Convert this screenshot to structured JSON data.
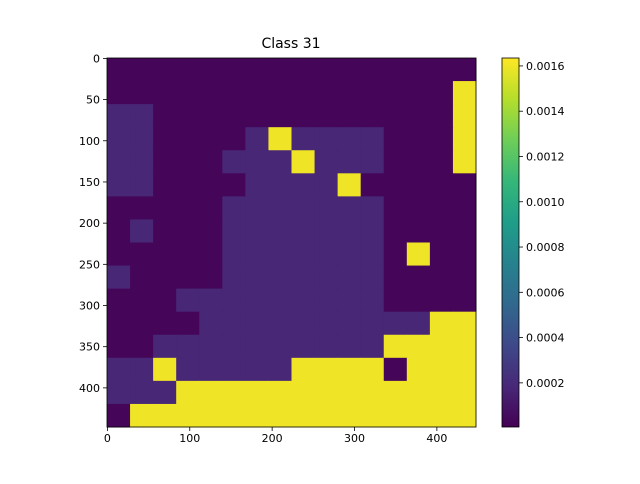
{
  "chart_data": {
    "type": "heatmap",
    "title": "Class 31",
    "colormap": "viridis",
    "xlim": [
      -0.5,
      447.5
    ],
    "ylim": [
      447.5,
      -0.5
    ],
    "xticks": [
      0,
      100,
      200,
      300,
      400
    ],
    "yticks": [
      0,
      50,
      100,
      150,
      200,
      250,
      300,
      350,
      400
    ],
    "clim": [
      5e-06,
      0.001635
    ],
    "cticks": [
      {
        "value": 0.0002,
        "label": "0.0002"
      },
      {
        "value": 0.0004,
        "label": "0.0004"
      },
      {
        "value": 0.0006,
        "label": "0.0006"
      },
      {
        "value": 0.0008,
        "label": "0.0008"
      },
      {
        "value": 0.001,
        "label": "0.0010"
      },
      {
        "value": 0.0012,
        "label": "0.0012"
      },
      {
        "value": 0.0014,
        "label": "0.0014"
      },
      {
        "value": 0.0016,
        "label": "0.0016"
      }
    ],
    "values": [
      [
        3e-05,
        3e-05,
        3e-05,
        3e-05,
        3e-05,
        3e-05,
        3e-05,
        3e-05,
        3e-05,
        3e-05,
        3e-05,
        3e-05,
        3e-05,
        3e-05,
        3e-05,
        3e-05
      ],
      [
        3e-05,
        3e-05,
        3e-05,
        3e-05,
        3e-05,
        3e-05,
        3e-05,
        3e-05,
        3e-05,
        3e-05,
        3e-05,
        3e-05,
        3e-05,
        3e-05,
        3e-05,
        0.0016
      ],
      [
        0.00018,
        0.00018,
        3e-05,
        3e-05,
        3e-05,
        3e-05,
        3e-05,
        3e-05,
        3e-05,
        3e-05,
        3e-05,
        3e-05,
        3e-05,
        3e-05,
        3e-05,
        0.0016
      ],
      [
        0.00018,
        0.00018,
        3e-05,
        3e-05,
        3e-05,
        3e-05,
        0.00018,
        0.0016,
        0.00018,
        0.00018,
        0.00018,
        0.00018,
        3e-05,
        3e-05,
        3e-05,
        0.0016
      ],
      [
        0.00018,
        0.00018,
        3e-05,
        3e-05,
        3e-05,
        0.00018,
        0.00018,
        0.00018,
        0.0016,
        0.00018,
        0.00018,
        0.00018,
        3e-05,
        3e-05,
        3e-05,
        0.0016
      ],
      [
        0.00018,
        0.00018,
        3e-05,
        3e-05,
        3e-05,
        3e-05,
        0.00018,
        0.00018,
        0.00018,
        0.00018,
        0.0016,
        3e-05,
        3e-05,
        3e-05,
        3e-05,
        3e-05
      ],
      [
        3e-05,
        3e-05,
        3e-05,
        3e-05,
        3e-05,
        0.00018,
        0.00018,
        0.00018,
        0.00018,
        0.00018,
        0.00018,
        0.00018,
        3e-05,
        3e-05,
        3e-05,
        3e-05
      ],
      [
        3e-05,
        0.00018,
        3e-05,
        3e-05,
        3e-05,
        0.00018,
        0.00018,
        0.00018,
        0.00018,
        0.00018,
        0.00018,
        0.00018,
        3e-05,
        3e-05,
        3e-05,
        3e-05
      ],
      [
        3e-05,
        3e-05,
        3e-05,
        3e-05,
        3e-05,
        0.00018,
        0.00018,
        0.00018,
        0.00018,
        0.00018,
        0.00018,
        0.00018,
        3e-05,
        0.0016,
        3e-05,
        3e-05
      ],
      [
        0.00018,
        3e-05,
        3e-05,
        3e-05,
        3e-05,
        0.00018,
        0.00018,
        0.00018,
        0.00018,
        0.00018,
        0.00018,
        0.00018,
        3e-05,
        3e-05,
        3e-05,
        3e-05
      ],
      [
        3e-05,
        3e-05,
        3e-05,
        0.00018,
        0.00018,
        0.00018,
        0.00018,
        0.00018,
        0.00018,
        0.00018,
        0.00018,
        0.00018,
        3e-05,
        3e-05,
        3e-05,
        3e-05
      ],
      [
        3e-05,
        3e-05,
        3e-05,
        3e-05,
        0.00018,
        0.00018,
        0.00018,
        0.00018,
        0.00018,
        0.00018,
        0.00018,
        0.00018,
        0.00018,
        0.00018,
        0.0016,
        0.0016
      ],
      [
        3e-05,
        3e-05,
        0.00018,
        0.00018,
        0.00018,
        0.00018,
        0.00018,
        0.00018,
        0.00018,
        0.00018,
        0.00018,
        0.00018,
        0.0016,
        0.0016,
        0.0016,
        0.0016
      ],
      [
        0.00018,
        0.00018,
        0.0016,
        0.00018,
        0.00018,
        0.00018,
        0.00018,
        0.00018,
        0.0016,
        0.0016,
        0.0016,
        0.0016,
        3e-05,
        0.0016,
        0.0016,
        0.0016
      ],
      [
        0.00018,
        0.00018,
        0.00018,
        0.0016,
        0.0016,
        0.0016,
        0.0016,
        0.0016,
        0.0016,
        0.0016,
        0.0016,
        0.0016,
        0.0016,
        0.0016,
        0.0016,
        0.0016
      ],
      [
        3e-05,
        0.0016,
        0.0016,
        0.0016,
        0.0016,
        0.0016,
        0.0016,
        0.0016,
        0.0016,
        0.0016,
        0.0016,
        0.0016,
        0.0016,
        0.0016,
        0.0016,
        0.0016
      ]
    ]
  }
}
